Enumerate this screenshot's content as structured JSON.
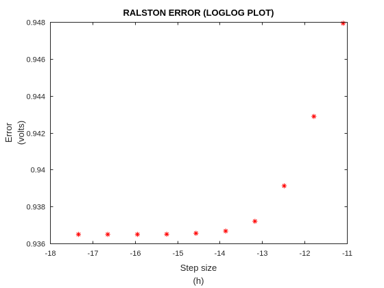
{
  "chart_data": {
    "type": "scatter",
    "title": "RALSTON ERROR (LOGLOG PLOT)",
    "xlabel": [
      "Step size",
      "(h)"
    ],
    "ylabel": [
      "Error",
      "(volts)"
    ],
    "xlim": [
      -18,
      -11
    ],
    "ylim": [
      0.936,
      0.948
    ],
    "xticks": [
      -18,
      -17,
      -16,
      -15,
      -14,
      -13,
      -12,
      -11
    ],
    "yticks": [
      0.936,
      0.938,
      0.94,
      0.942,
      0.944,
      0.946,
      0.948
    ],
    "ytick_labels": [
      "0.936",
      "0.938",
      "0.94",
      "0.942",
      "0.944",
      "0.946",
      "0.948"
    ],
    "grid": false,
    "marker": "*",
    "marker_color": "#ff0000",
    "axes_color": "#262626",
    "series": [
      {
        "x": [
          -17.33,
          -16.64,
          -15.94,
          -15.25,
          -14.56,
          -13.86,
          -13.17,
          -12.48,
          -11.78,
          -11.09
        ],
        "y": [
          0.93649,
          0.93649,
          0.93649,
          0.9365,
          0.93655,
          0.93667,
          0.9372,
          0.93912,
          0.94288,
          0.94793
        ]
      }
    ]
  }
}
